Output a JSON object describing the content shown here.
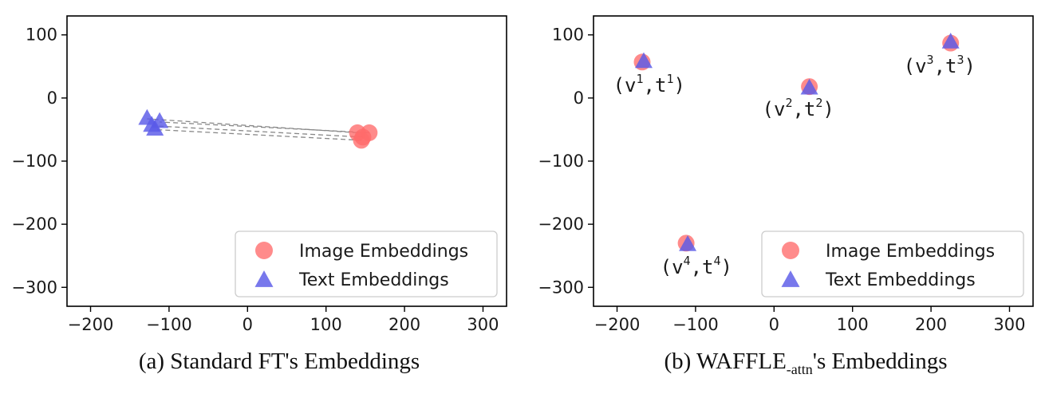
{
  "chart_data": [
    {
      "type": "scatter",
      "caption": "(a) Standard FT's Embeddings",
      "xlim": [
        -230,
        330
      ],
      "ylim": [
        -330,
        130
      ],
      "xticks": [
        -200,
        -100,
        0,
        100,
        200,
        300
      ],
      "yticks": [
        100,
        0,
        -100,
        -200,
        -300
      ],
      "grid": false,
      "legend_position": "lower-right",
      "legend": [
        {
          "label": "Image Embeddings",
          "marker": "circle",
          "color": "#ff6a6a"
        },
        {
          "label": "Text Embeddings",
          "marker": "triangle",
          "color": "#5a5ae8"
        }
      ],
      "series": [
        {
          "name": "Image Embeddings",
          "marker": "circle",
          "color": "#ff6a6a",
          "points": [
            [
              140,
              -55
            ],
            [
              155,
              -55
            ],
            [
              147,
              -62
            ],
            [
              145,
              -67
            ]
          ]
        },
        {
          "name": "Text Embeddings",
          "marker": "triangle",
          "color": "#5a5ae8",
          "points": [
            [
              -128,
              -33
            ],
            [
              -112,
              -38
            ],
            [
              -122,
              -44
            ],
            [
              -118,
              -50
            ]
          ]
        }
      ],
      "pairs": [
        [
          0,
          0
        ],
        [
          1,
          1
        ],
        [
          2,
          2
        ],
        [
          3,
          3
        ]
      ],
      "annotations": []
    },
    {
      "type": "scatter",
      "caption": "(b) WAFFLE",
      "caption_sub": "-attn",
      "caption_suffix": "'s Embeddings",
      "xlim": [
        -230,
        330
      ],
      "ylim": [
        -330,
        130
      ],
      "xticks": [
        -200,
        -100,
        0,
        100,
        200,
        300
      ],
      "yticks": [
        100,
        0,
        -100,
        -200,
        -300
      ],
      "grid": false,
      "legend_position": "lower-right",
      "legend": [
        {
          "label": "Image Embeddings",
          "marker": "circle",
          "color": "#ff6a6a"
        },
        {
          "label": "Text Embeddings",
          "marker": "triangle",
          "color": "#5a5ae8"
        }
      ],
      "series": [
        {
          "name": "Image Embeddings",
          "marker": "circle",
          "color": "#ff6a6a",
          "points": [
            [
              -168,
              57
            ],
            [
              45,
              18
            ],
            [
              225,
              87
            ],
            [
              -112,
              -230
            ]
          ]
        },
        {
          "name": "Text Embeddings",
          "marker": "triangle",
          "color": "#5a5ae8",
          "points": [
            [
              -166,
              57
            ],
            [
              45,
              15
            ],
            [
              225,
              88
            ],
            [
              -110,
              -233
            ]
          ]
        }
      ],
      "pairs": [],
      "annotations": [
        {
          "pre": "(v",
          "sup1": "1",
          "mid": ",t",
          "sup2": "1",
          "post": ")",
          "x": -205,
          "y": 10
        },
        {
          "pre": "(v",
          "sup1": "2",
          "mid": ",t",
          "sup2": "2",
          "post": ")",
          "x": -15,
          "y": -28
        },
        {
          "pre": "(v",
          "sup1": "3",
          "mid": ",t",
          "sup2": "3",
          "post": ")",
          "x": 165,
          "y": 40
        },
        {
          "pre": "(v",
          "sup1": "4",
          "mid": ",t",
          "sup2": "4",
          "post": ")",
          "x": -145,
          "y": -278
        }
      ]
    }
  ]
}
